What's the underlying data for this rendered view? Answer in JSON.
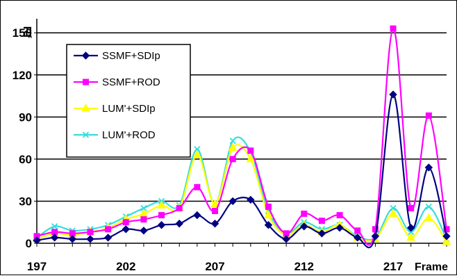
{
  "chart_data": {
    "type": "line",
    "ylabel": "Rf",
    "xlabel": "Frame",
    "ylim": [
      0,
      160
    ],
    "yticks": [
      0,
      30,
      60,
      90,
      120,
      150
    ],
    "xlim": [
      197,
      220
    ],
    "xticks": [
      197,
      202,
      207,
      212,
      217
    ],
    "grid": "horizontal",
    "legend_position": "top-left",
    "x": [
      197,
      198,
      199,
      200,
      201,
      202,
      203,
      204,
      205,
      206,
      207,
      208,
      209,
      210,
      211,
      212,
      213,
      214,
      215,
      216,
      217,
      218,
      219,
      220
    ],
    "series": [
      {
        "name": "SSMF+SDIp",
        "color": "#000080",
        "marker": "diamond",
        "values": [
          2,
          4,
          3,
          3,
          4,
          10,
          9,
          13,
          14,
          20,
          14,
          30,
          31,
          13,
          3,
          12,
          7,
          11,
          4,
          5,
          106,
          11,
          54,
          5
        ]
      },
      {
        "name": "SSMF+ROD",
        "color": "#ff00ff",
        "marker": "square",
        "values": [
          5,
          8,
          7,
          8,
          10,
          15,
          17,
          20,
          25,
          40,
          23,
          60,
          66,
          26,
          7,
          21,
          16,
          20,
          9,
          10,
          153,
          25,
          91,
          10
        ]
      },
      {
        "name": "LUM'+SDIp",
        "color": "#ffff00",
        "marker": "triangle",
        "values": [
          3,
          7,
          6,
          8,
          11,
          17,
          21,
          27,
          25,
          63,
          28,
          68,
          60,
          20,
          6,
          13,
          8,
          13,
          4,
          3,
          21,
          4,
          18,
          1
        ]
      },
      {
        "name": "LUM'+ROD",
        "color": "#33dddd",
        "marker": "x",
        "values": [
          4,
          12,
          9,
          10,
          13,
          19,
          25,
          30,
          27,
          67,
          28,
          73,
          65,
          23,
          7,
          15,
          10,
          13,
          5,
          4,
          25,
          8,
          26,
          3
        ]
      }
    ]
  }
}
